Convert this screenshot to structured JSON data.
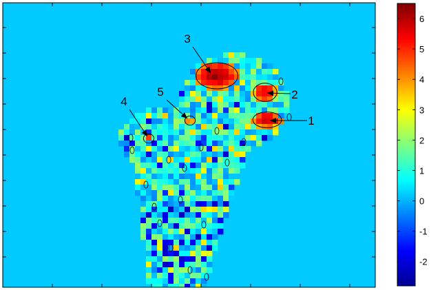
{
  "chart_data": {
    "type": "heatmap",
    "title": "",
    "xlabel": "",
    "ylabel": "",
    "background_value": 0.2,
    "colormap": "jet",
    "colorbar": {
      "min": -2.8,
      "max": 6.5,
      "ticks": [
        6,
        5,
        4,
        3,
        2,
        1,
        0,
        -1,
        -2
      ],
      "tick_labels": [
        "6",
        "5",
        "4",
        "3",
        "2",
        "1",
        "0",
        "-1",
        "-2"
      ],
      "placement": "right"
    },
    "hotspots": [
      {
        "label": "1",
        "value": 5.8
      },
      {
        "label": "2",
        "value": 5.6
      },
      {
        "label": "3",
        "value": 6.1
      },
      {
        "label": "4",
        "value": 4.6
      },
      {
        "label": "5",
        "value": 4.5
      }
    ]
  }
}
